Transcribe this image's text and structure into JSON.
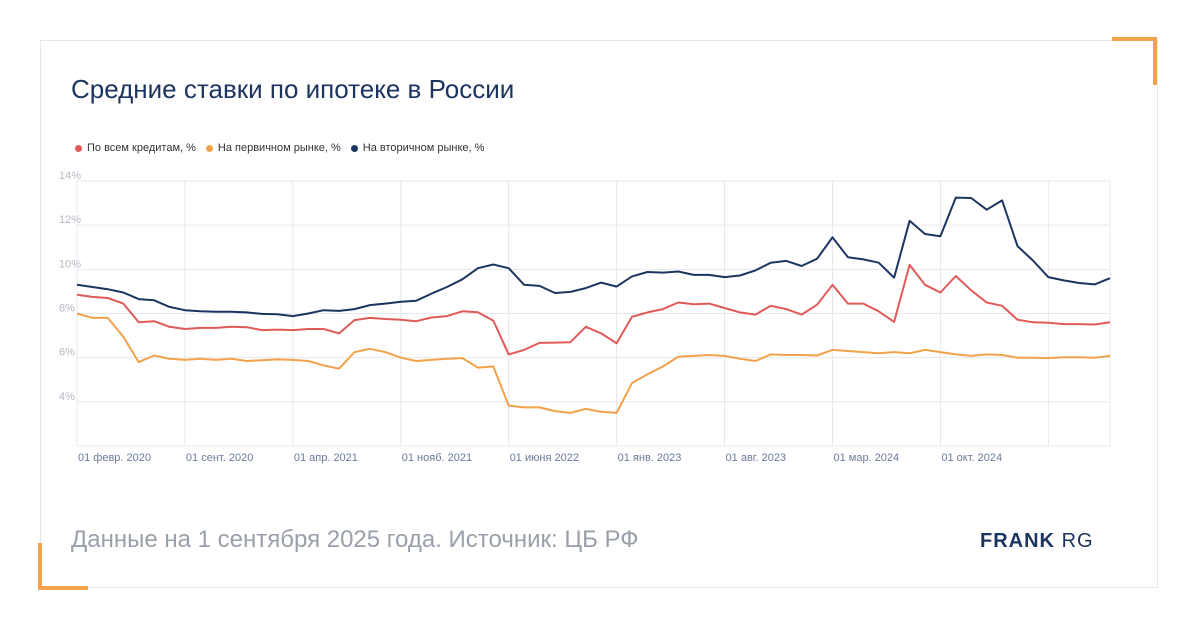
{
  "title": "Средние ставки по ипотеке в России",
  "footer": "Данные на 1 сентября 2025 года. Источник: ЦБ РФ",
  "brand": {
    "part1": "FRANK",
    "part2": "RG"
  },
  "colors": {
    "all": "#e05b57",
    "primary": "#f2a24a",
    "secondary": "#1c3560",
    "accent": "#f2a24a"
  },
  "chart_data": {
    "type": "line",
    "title": "Средние ставки по ипотеке в России",
    "ylim": [
      2,
      14
    ],
    "yticks": [
      14,
      12,
      10,
      8,
      6,
      4
    ],
    "ytick_labels": [
      "14%",
      "12%",
      "10%",
      "8%",
      "6%",
      "4%"
    ],
    "xtick_labels": [
      "01 февр. 2020",
      "01 сент. 2020",
      "01 апр. 2021",
      "01 нояб. 2021",
      "01 июня 2022",
      "01 янв. 2023",
      "01 авг. 2023",
      "01 мар. 2024",
      "01 окт. 2024"
    ],
    "x_start": "2020-02",
    "x_end": "2025-08",
    "grid": true,
    "legend": "top-left",
    "series": [
      {
        "name": "По всем кредитам, %",
        "color": "#e05b57",
        "values": [
          8.85,
          8.75,
          8.7,
          8.45,
          7.6,
          7.65,
          7.4,
          7.3,
          7.35,
          7.35,
          7.4,
          7.38,
          7.25,
          7.27,
          7.25,
          7.3,
          7.3,
          7.1,
          7.7,
          7.8,
          7.75,
          7.72,
          7.65,
          7.82,
          7.88,
          8.1,
          8.06,
          7.68,
          6.15,
          6.35,
          6.67,
          6.68,
          6.7,
          7.4,
          7.1,
          6.65,
          7.85,
          8.05,
          8.2,
          8.5,
          8.42,
          8.45,
          8.25,
          8.05,
          7.95,
          8.35,
          8.2,
          7.95,
          8.4,
          9.3,
          8.45,
          8.45,
          8.1,
          7.62,
          10.2,
          9.3,
          8.95,
          9.7,
          9.05,
          8.5,
          8.35,
          7.72,
          7.6,
          7.58,
          7.52,
          7.52,
          7.5,
          7.6
        ]
      },
      {
        "name": "На первичном рынке, %",
        "color": "#f2a24a",
        "values": [
          8.0,
          7.8,
          7.8,
          6.95,
          5.8,
          6.1,
          5.95,
          5.9,
          5.95,
          5.9,
          5.95,
          5.85,
          5.88,
          5.92,
          5.9,
          5.85,
          5.65,
          5.5,
          6.25,
          6.4,
          6.25,
          6.0,
          5.85,
          5.9,
          5.95,
          5.98,
          5.55,
          5.6,
          3.83,
          3.75,
          3.75,
          3.58,
          3.5,
          3.68,
          3.55,
          3.5,
          4.85,
          5.25,
          5.6,
          6.05,
          6.08,
          6.12,
          6.08,
          5.95,
          5.85,
          6.15,
          6.12,
          6.12,
          6.1,
          6.35,
          6.3,
          6.25,
          6.2,
          6.25,
          6.2,
          6.35,
          6.25,
          6.15,
          6.08,
          6.15,
          6.12,
          6.0,
          6.0,
          5.98,
          6.02,
          6.02,
          6.0,
          6.08
        ]
      },
      {
        "name": "На вторичном рынке, %",
        "color": "#1c3560",
        "values": [
          9.3,
          9.2,
          9.1,
          8.95,
          8.65,
          8.6,
          8.3,
          8.15,
          8.1,
          8.08,
          8.08,
          8.05,
          7.98,
          7.97,
          7.88,
          8.0,
          8.15,
          8.12,
          8.2,
          8.38,
          8.45,
          8.53,
          8.58,
          8.9,
          9.2,
          9.55,
          10.05,
          10.22,
          10.05,
          9.3,
          9.25,
          8.93,
          8.98,
          9.15,
          9.4,
          9.22,
          9.68,
          9.88,
          9.85,
          9.9,
          9.75,
          9.75,
          9.65,
          9.72,
          9.95,
          10.3,
          10.38,
          10.15,
          10.48,
          11.45,
          10.55,
          10.45,
          10.3,
          9.62,
          12.2,
          11.6,
          11.5,
          13.25,
          13.23,
          12.7,
          13.12,
          11.05,
          10.4,
          9.65,
          9.5,
          9.38,
          9.32,
          9.6
        ]
      }
    ]
  }
}
